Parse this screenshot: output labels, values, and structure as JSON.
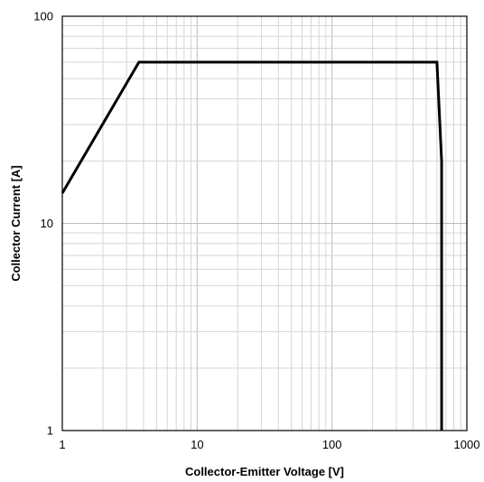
{
  "chart_data": {
    "type": "line",
    "x_scale": "log",
    "y_scale": "log",
    "xlim": [
      1,
      1000
    ],
    "ylim": [
      1,
      100
    ],
    "grid": true,
    "xlabel": "Collector-Emitter Voltage   [V]",
    "ylabel": "Collector Current [A]",
    "x_ticks": [
      1,
      10,
      100,
      1000
    ],
    "x_tick_labels": [
      "1",
      "10",
      "100",
      "1000"
    ],
    "y_ticks": [
      1,
      10,
      100
    ],
    "y_tick_labels": [
      "1",
      "10",
      "100"
    ],
    "series": [
      {
        "color": "#000000",
        "x": [
          1,
          3.7,
          600,
          650,
          650
        ],
        "y": [
          14,
          60,
          60,
          20,
          1
        ]
      }
    ]
  }
}
